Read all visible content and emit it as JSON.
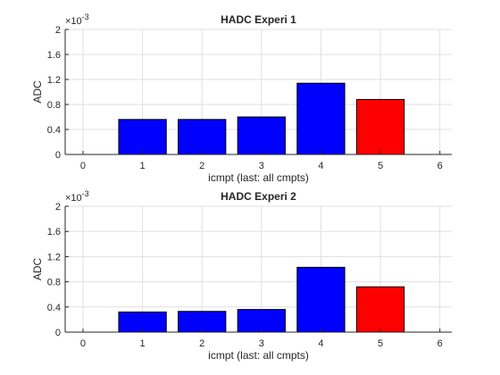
{
  "chart_data": [
    {
      "type": "bar",
      "title": "HADC Experi 1",
      "xlabel": "icmpt (last: all cmpts)",
      "ylabel": "ADC",
      "exponent_label": "×10",
      "exponent_power": "-3",
      "xlim": [
        -0.3,
        6.2
      ],
      "ylim": [
        0,
        2
      ],
      "x_ticks": [
        0,
        1,
        2,
        3,
        4,
        5,
        6
      ],
      "x_tick_labels": [
        "0",
        "1",
        "2",
        "3",
        "4",
        "5",
        "6"
      ],
      "y_ticks": [
        0,
        0.4,
        0.8,
        1.2,
        1.6,
        2
      ],
      "y_tick_labels": [
        "0",
        "0.4",
        "0.8",
        "1.2",
        "1.6",
        "2"
      ],
      "grid": true,
      "bar_width": 0.8,
      "x": [
        1,
        2,
        3,
        4,
        5
      ],
      "values": [
        0.56,
        0.56,
        0.6,
        1.14,
        0.88
      ],
      "colors": [
        "#0000ff",
        "#0000ff",
        "#0000ff",
        "#0000ff",
        "#ff0000"
      ]
    },
    {
      "type": "bar",
      "title": "HADC Experi 2",
      "xlabel": "icmpt (last: all cmpts)",
      "ylabel": "ADC",
      "exponent_label": "×10",
      "exponent_power": "-3",
      "xlim": [
        -0.3,
        6.2
      ],
      "ylim": [
        0,
        2
      ],
      "x_ticks": [
        0,
        1,
        2,
        3,
        4,
        5,
        6
      ],
      "x_tick_labels": [
        "0",
        "1",
        "2",
        "3",
        "4",
        "5",
        "6"
      ],
      "y_ticks": [
        0,
        0.4,
        0.8,
        1.2,
        1.6,
        2
      ],
      "y_tick_labels": [
        "0",
        "0.4",
        "0.8",
        "1.2",
        "1.6",
        "2"
      ],
      "grid": true,
      "bar_width": 0.8,
      "x": [
        1,
        2,
        3,
        4,
        5
      ],
      "values": [
        0.32,
        0.33,
        0.36,
        1.03,
        0.72
      ],
      "colors": [
        "#0000ff",
        "#0000ff",
        "#0000ff",
        "#0000ff",
        "#ff0000"
      ]
    }
  ]
}
